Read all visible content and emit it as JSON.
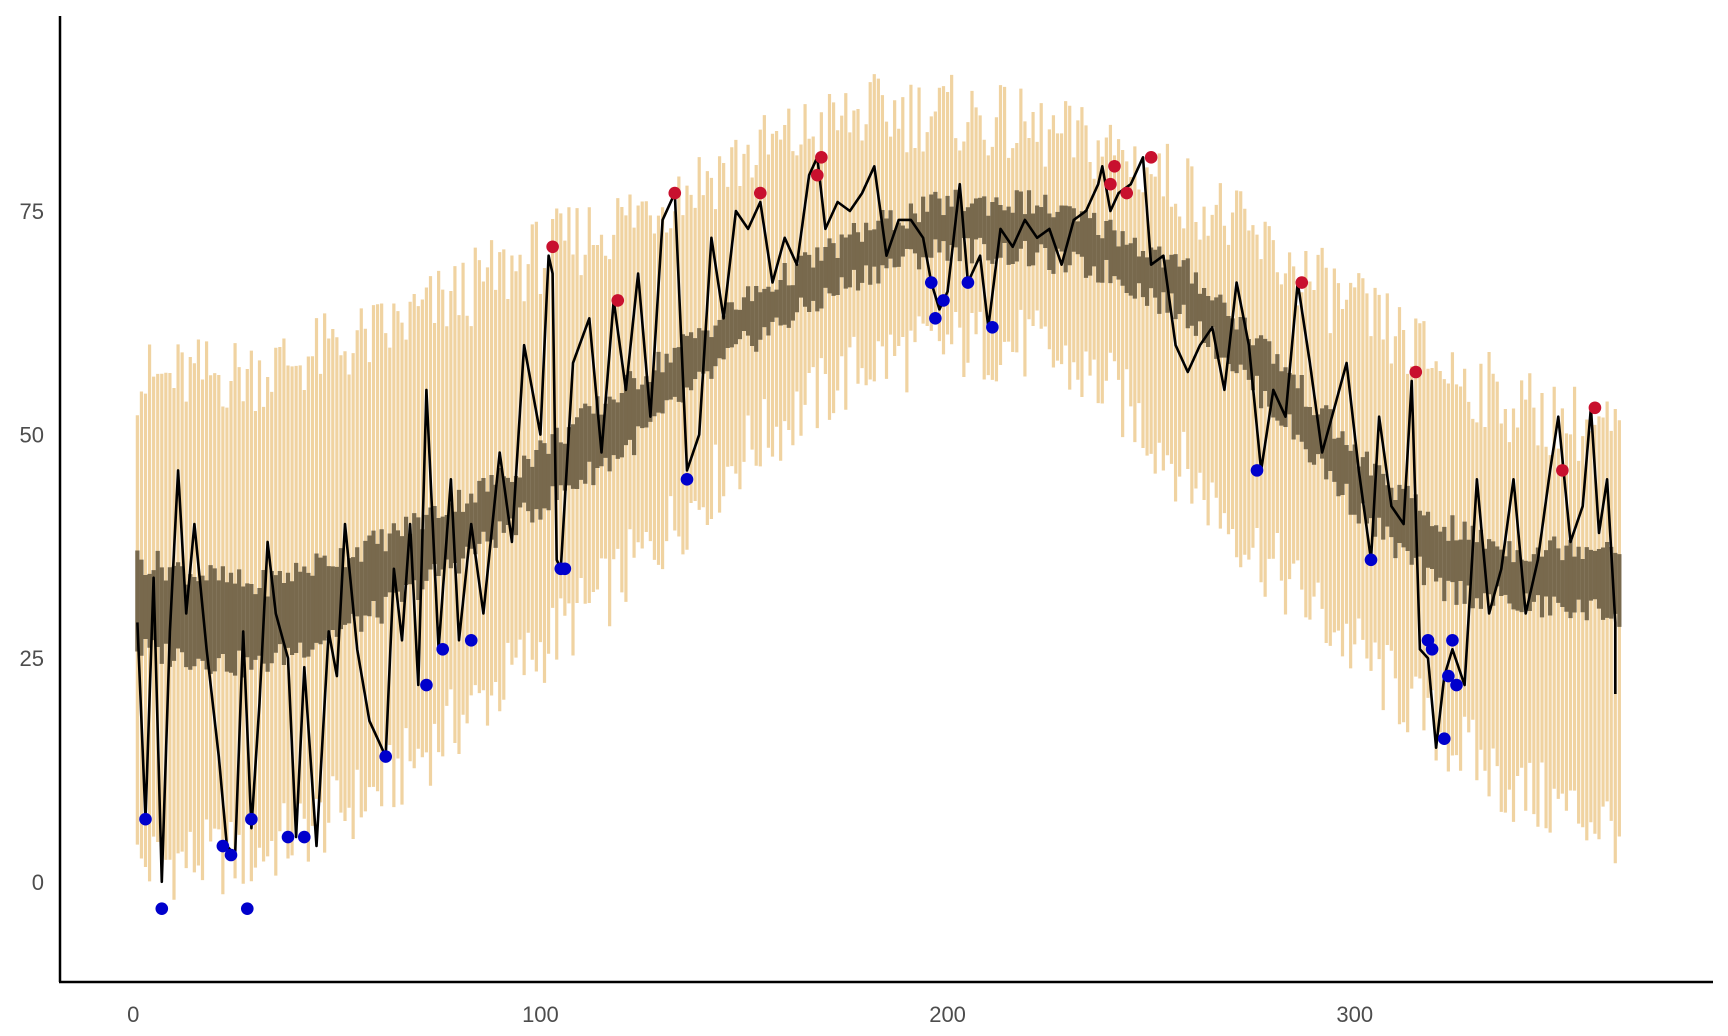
{
  "chart_data": {
    "type": "line",
    "title": "",
    "xlabel": "",
    "ylabel": "",
    "xlim": [
      -18,
      388
    ],
    "ylim": [
      -11.2,
      96.8
    ],
    "grid": false,
    "x_ticks": [
      {
        "value": 0,
        "label": "0"
      },
      {
        "value": 100,
        "label": "100"
      },
      {
        "value": 200,
        "label": "200"
      },
      {
        "value": 300,
        "label": "300"
      }
    ],
    "y_ticks": [
      {
        "value": 0,
        "label": "0"
      },
      {
        "value": 25,
        "label": "25"
      },
      {
        "value": 50,
        "label": "50"
      },
      {
        "value": 75,
        "label": "75"
      }
    ],
    "colors": {
      "range_band": "#f0d3a1",
      "normal_band": "#78694d",
      "observed_line": "#000000",
      "record_high": "#c8102e",
      "record_low": "#0000cc"
    },
    "daily_series_days": [
      1,
      365
    ],
    "range_band_anchors": {
      "day": [
        1,
        30,
        60,
        90,
        120,
        150,
        180,
        200,
        220,
        240,
        260,
        280,
        300,
        320,
        340,
        365
      ],
      "low": [
        2,
        3,
        10,
        22,
        34,
        48,
        58,
        60,
        60,
        55,
        45,
        35,
        26,
        17,
        10,
        6
      ],
      "high": [
        56,
        57,
        61,
        68,
        74,
        81,
        86,
        86,
        84,
        82,
        77,
        70,
        64,
        58,
        53,
        50
      ]
    },
    "normal_band_anchors": {
      "day": [
        1,
        30,
        60,
        90,
        120,
        150,
        180,
        200,
        220,
        240,
        260,
        280,
        300,
        320,
        340,
        365
      ],
      "low": [
        26,
        24,
        30,
        39,
        48,
        60,
        68,
        71,
        70,
        68,
        63,
        53,
        42,
        33,
        31,
        30
      ],
      "high": [
        36,
        33,
        38,
        45,
        55,
        65,
        73,
        76,
        76,
        73,
        68,
        59,
        48,
        40,
        37,
        38
      ]
    },
    "observed_anchors": {
      "day": [
        1,
        3,
        5,
        7,
        9,
        11,
        13,
        15,
        18,
        21,
        23,
        25,
        27,
        29,
        31,
        33,
        35,
        38,
        40,
        42,
        45,
        48,
        50,
        52,
        55,
        58,
        60,
        62,
        64,
        66,
        68,
        70,
        72,
        75,
        78,
        80,
        83,
        86,
        90,
        93,
        96,
        100,
        102,
        103,
        104,
        105,
        108,
        112,
        115,
        118,
        121,
        124,
        127,
        130,
        133,
        136,
        139,
        142,
        145,
        148,
        151,
        154,
        157,
        160,
        163,
        166,
        168,
        170,
        173,
        176,
        179,
        182,
        185,
        188,
        191,
        194,
        196,
        198,
        200,
        203,
        205,
        208,
        210,
        213,
        216,
        219,
        222,
        225,
        228,
        231,
        234,
        237,
        238,
        240,
        242,
        245,
        248,
        250,
        253,
        256,
        259,
        262,
        265,
        268,
        271,
        274,
        277,
        280,
        283,
        286,
        289,
        292,
        295,
        298,
        301,
        304,
        306,
        309,
        312,
        314,
        316,
        318,
        320,
        322,
        324,
        327,
        330,
        333,
        336,
        339,
        342,
        345,
        348,
        350,
        353,
        356,
        358,
        360,
        362,
        364
      ],
      "value": [
        29,
        7,
        34,
        0,
        28,
        46,
        30,
        40,
        26,
        14,
        4,
        3,
        28,
        6,
        20,
        38,
        30,
        25,
        5,
        24,
        4,
        28,
        23,
        40,
        26,
        18,
        16,
        14,
        35,
        27,
        40,
        22,
        55,
        26,
        45,
        27,
        40,
        30,
        48,
        38,
        60,
        50,
        70,
        68,
        36,
        35,
        58,
        63,
        48,
        65,
        55,
        68,
        52,
        74,
        77,
        46,
        50,
        72,
        63,
        75,
        73,
        76,
        67,
        72,
        69,
        79,
        81,
        73,
        76,
        75,
        77,
        80,
        70,
        74,
        74,
        72,
        67,
        64,
        66,
        78,
        67,
        70,
        62,
        73,
        71,
        74,
        72,
        73,
        69,
        74,
        75,
        78,
        80,
        75,
        77,
        78,
        81,
        69,
        70,
        60,
        57,
        60,
        62,
        55,
        67,
        60,
        46,
        55,
        52,
        67,
        58,
        48,
        53,
        58,
        46,
        36,
        52,
        42,
        40,
        56,
        26,
        25,
        15,
        23,
        26,
        22,
        45,
        30,
        35,
        45,
        30,
        36,
        46,
        52,
        38,
        42,
        53,
        39,
        45,
        29
      ],
      "end": {
        "day": 364,
        "value": 21
      }
    },
    "record_highs": [
      {
        "day": 103,
        "value": 71
      },
      {
        "day": 119,
        "value": 65
      },
      {
        "day": 133,
        "value": 77
      },
      {
        "day": 154,
        "value": 77
      },
      {
        "day": 168,
        "value": 79
      },
      {
        "day": 169,
        "value": 81
      },
      {
        "day": 240,
        "value": 78
      },
      {
        "day": 241,
        "value": 80
      },
      {
        "day": 244,
        "value": 77
      },
      {
        "day": 250,
        "value": 81
      },
      {
        "day": 287,
        "value": 67
      },
      {
        "day": 315,
        "value": 57
      },
      {
        "day": 351,
        "value": 46
      },
      {
        "day": 359,
        "value": 53
      }
    ],
    "record_lows": [
      {
        "day": 3,
        "value": 7
      },
      {
        "day": 7,
        "value": -3
      },
      {
        "day": 22,
        "value": 4
      },
      {
        "day": 24,
        "value": 3
      },
      {
        "day": 28,
        "value": -3
      },
      {
        "day": 29,
        "value": 7
      },
      {
        "day": 38,
        "value": 5
      },
      {
        "day": 42,
        "value": 5
      },
      {
        "day": 62,
        "value": 14
      },
      {
        "day": 72,
        "value": 22
      },
      {
        "day": 76,
        "value": 26
      },
      {
        "day": 83,
        "value": 27
      },
      {
        "day": 105,
        "value": 35
      },
      {
        "day": 106,
        "value": 35
      },
      {
        "day": 136,
        "value": 45
      },
      {
        "day": 196,
        "value": 67
      },
      {
        "day": 197,
        "value": 63
      },
      {
        "day": 199,
        "value": 65
      },
      {
        "day": 205,
        "value": 67
      },
      {
        "day": 211,
        "value": 62
      },
      {
        "day": 276,
        "value": 46
      },
      {
        "day": 304,
        "value": 36
      },
      {
        "day": 318,
        "value": 27
      },
      {
        "day": 319,
        "value": 26
      },
      {
        "day": 322,
        "value": 16
      },
      {
        "day": 323,
        "value": 23
      },
      {
        "day": 324,
        "value": 27
      },
      {
        "day": 325,
        "value": 22
      }
    ]
  }
}
